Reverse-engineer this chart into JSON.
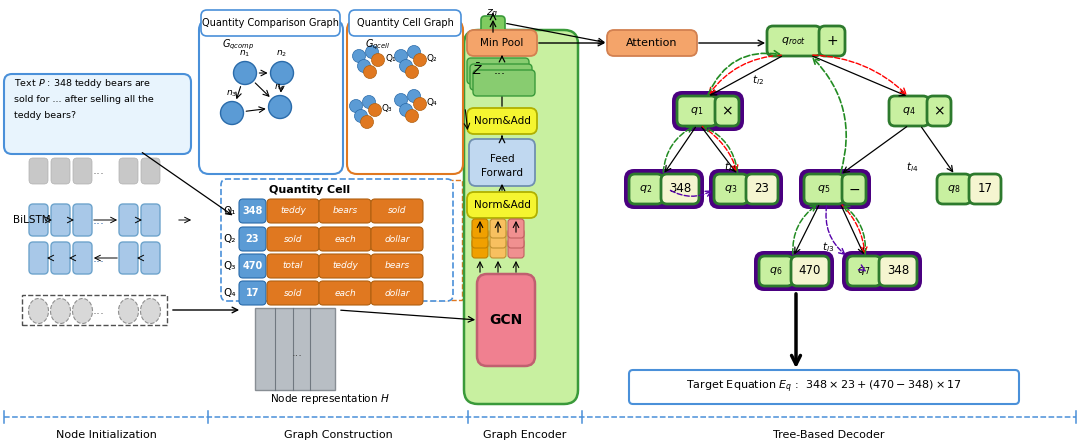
{
  "bg_color": "#ffffff",
  "blue_node_color": "#5b9bd5",
  "orange_node_color": "#e07820",
  "dark_green_border": "#2d7a2d",
  "section_labels": [
    "Node Initialization",
    "Graph Construction",
    "Graph Encoder",
    "Tree-Based Decoder"
  ],
  "quantity_cells": [
    {
      "label": "Q₁",
      "num": "348",
      "words": [
        "teddy",
        "bears",
        "sold"
      ]
    },
    {
      "label": "Q₂",
      "num": "23",
      "words": [
        "sold",
        "each",
        "dollar"
      ]
    },
    {
      "label": "Q₃",
      "num": "470",
      "words": [
        "total",
        "teddy",
        "bears"
      ]
    },
    {
      "label": "Q₄",
      "num": "17",
      "words": [
        "sold",
        "each",
        "dollar"
      ]
    }
  ]
}
